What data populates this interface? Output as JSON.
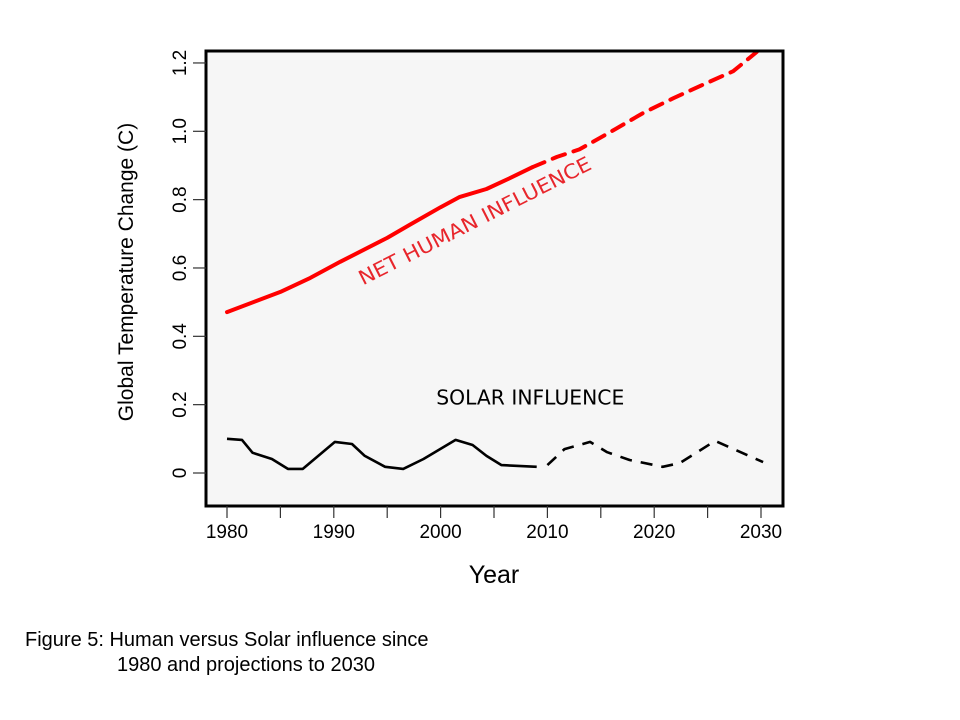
{
  "chart_data": {
    "type": "line",
    "title": "",
    "xlabel": "Year",
    "ylabel": "Global Temperature Change (C)",
    "xlim": [
      1979,
      2032
    ],
    "ylim": [
      -0.1,
      1.24
    ],
    "x_ticks": [
      1980,
      1990,
      2000,
      2010,
      2020,
      2030
    ],
    "x_tick_labels": [
      "1980",
      "1990",
      "2000",
      "2010",
      "2020",
      "2030"
    ],
    "x_minor_ticks": [
      1985,
      1995,
      2005,
      2015,
      2025
    ],
    "y_ticks": [
      0,
      0.2,
      0.4,
      0.6,
      0.8,
      1.0,
      1.2
    ],
    "y_tick_labels": [
      "0",
      "0.2",
      "0.4",
      "0.6",
      "0.8",
      "1.0",
      "1.2"
    ],
    "grid": false,
    "legend": "none",
    "colors": {
      "human": "#ff0000",
      "human_label": "#e8262c",
      "solar": "#000000",
      "plot_background": "#f6f6f6"
    },
    "series": [
      {
        "name": "Net Human Influence (observed)",
        "style": "solid",
        "color_key": "human",
        "x": [
          1980,
          1985,
          1987.8,
          1990.6,
          1995,
          1997.1,
          2000,
          2001.8,
          2004.3,
          2006.5,
          2008.6
        ],
        "y": [
          0.471,
          0.53,
          0.571,
          0.618,
          0.688,
          0.726,
          0.778,
          0.808,
          0.831,
          0.863,
          0.895
        ]
      },
      {
        "name": "Net Human Influence (projection)",
        "style": "dashed",
        "color_key": "human",
        "x": [
          2008.6,
          2010.9,
          2013,
          2015.9,
          2019,
          2021.8,
          2024.9,
          2027.4,
          2029.6
        ],
        "y": [
          0.895,
          0.925,
          0.947,
          0.998,
          1.054,
          1.097,
          1.141,
          1.176,
          1.232
        ]
      },
      {
        "name": "Solar Influence (observed)",
        "style": "solid",
        "color_key": "solar",
        "x": [
          1980,
          1981.4,
          1982.4,
          1984.2,
          1985.7,
          1987.1,
          1990.1,
          1991.7,
          1992.9,
          1994.8,
          1996.5,
          1998.4,
          2001.4,
          2003,
          2004.3,
          2005.7,
          2009
        ],
        "y": [
          0.1,
          0.097,
          0.059,
          0.041,
          0.012,
          0.012,
          0.091,
          0.085,
          0.05,
          0.018,
          0.012,
          0.041,
          0.097,
          0.082,
          0.05,
          0.023,
          0.018
        ]
      },
      {
        "name": "Solar Influence (projection)",
        "style": "dashed",
        "color_key": "solar",
        "x": [
          2010,
          2011.6,
          2014,
          2015.6,
          2017.7,
          2020.8,
          2022.4,
          2025.7,
          2030.2
        ],
        "y": [
          0.023,
          0.07,
          0.091,
          0.061,
          0.038,
          0.018,
          0.029,
          0.094,
          0.032
        ]
      }
    ],
    "annotations": [
      {
        "text": "NET HUMAN INFLUENCE",
        "x": 2003.5,
        "y": 0.72,
        "rotation_deg": -27,
        "color_key": "human_label"
      },
      {
        "text": "SOLAR INFLUENCE",
        "x": 2008.4,
        "y": 0.2,
        "rotation_deg": 0,
        "color_key": "solar"
      }
    ]
  },
  "caption": {
    "line1": "Figure 5: Human versus Solar influence since",
    "line2": "1980 and projections to 2030"
  }
}
